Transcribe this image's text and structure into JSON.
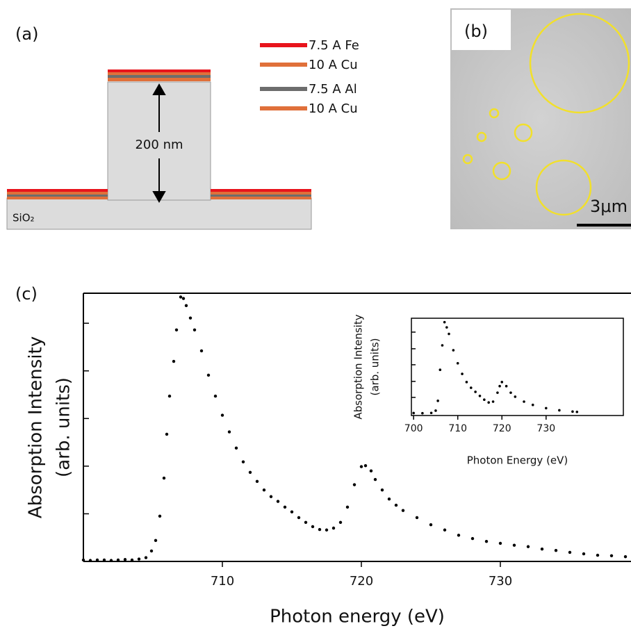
{
  "panel_a": {
    "label": "(a)",
    "layers": [
      "7.5 A Fe",
      "10 A Cu",
      "7.5 A Al",
      "10 A Cu"
    ],
    "height": "200 nm",
    "substrate": "SiO₂"
  },
  "panel_b": {
    "label": "(b)",
    "scale_bar": "3μm"
  },
  "panel_c": {
    "label": "(c)"
  },
  "chart_data": [
    {
      "type": "scatter",
      "xlabel": "Photon energy (eV)",
      "ylabel": [
        "Absorption Intensity",
        "(arb. units)"
      ],
      "color": "#000000",
      "xlim": [
        700,
        739.4
      ],
      "xticks": [
        710,
        720,
        730
      ],
      "ylim": [
        0,
        5.63
      ],
      "yticks": [
        1,
        2,
        3,
        4,
        5
      ],
      "x": [
        700,
        700.5,
        701,
        701.5,
        702,
        702.5,
        703,
        703.5,
        704,
        704.5,
        704.9,
        705.2,
        705.5,
        705.8,
        706,
        706.2,
        706.5,
        706.7,
        707,
        707.2,
        707.4,
        707.7,
        708,
        708.5,
        709,
        709.5,
        710,
        710.5,
        711,
        711.5,
        712,
        712.5,
        713,
        713.5,
        714,
        714.5,
        715,
        715.5,
        716,
        716.5,
        717,
        717.5,
        718,
        718.5,
        719,
        719.5,
        720,
        720.3,
        720.7,
        721,
        721.5,
        722,
        722.5,
        723,
        724,
        725,
        726,
        727,
        728,
        729,
        730,
        731,
        732,
        733,
        734,
        735,
        736,
        737,
        738,
        739
      ],
      "values": [
        0.03,
        0.02,
        0.03,
        0.03,
        0.02,
        0.03,
        0.04,
        0.03,
        0.05,
        0.08,
        0.22,
        0.44,
        0.95,
        1.75,
        2.67,
        3.47,
        4.2,
        4.86,
        5.55,
        5.52,
        5.37,
        5.11,
        4.86,
        4.42,
        3.91,
        3.47,
        3.07,
        2.72,
        2.38,
        2.09,
        1.87,
        1.68,
        1.5,
        1.36,
        1.26,
        1.14,
        1.04,
        0.92,
        0.82,
        0.73,
        0.67,
        0.66,
        0.7,
        0.82,
        1.14,
        1.61,
        1.99,
        2.01,
        1.9,
        1.72,
        1.5,
        1.31,
        1.18,
        1.07,
        0.92,
        0.77,
        0.66,
        0.55,
        0.48,
        0.42,
        0.38,
        0.34,
        0.31,
        0.26,
        0.23,
        0.19,
        0.16,
        0.13,
        0.12,
        0.1
      ]
    },
    {
      "type": "scatter",
      "xlabel": "Photon Energy (eV)",
      "ylabel": [
        "Absorption Intensity",
        "(arb. units)"
      ],
      "color": "#000000",
      "xlim": [
        699.5,
        747.5
      ],
      "xticks": [
        700,
        710,
        720,
        730
      ],
      "ylim": [
        0,
        5.96
      ],
      "yticks": [
        1.11,
        2.09,
        3.11,
        4.09,
        5.11
      ],
      "x": [
        700,
        702,
        704,
        705,
        705.5,
        706,
        706.5,
        707,
        707.5,
        708,
        709,
        710,
        711,
        712,
        713,
        714,
        715,
        716,
        717,
        718,
        719,
        719.5,
        720,
        721,
        722,
        723,
        725,
        727,
        730,
        733,
        736,
        737
      ],
      "values": [
        0.15,
        0.14,
        0.16,
        0.3,
        0.9,
        2.8,
        4.3,
        5.72,
        5.4,
        5.0,
        4.0,
        3.2,
        2.55,
        2.05,
        1.7,
        1.45,
        1.2,
        0.97,
        0.8,
        0.85,
        1.4,
        1.8,
        2.05,
        1.8,
        1.4,
        1.15,
        0.85,
        0.65,
        0.45,
        0.32,
        0.24,
        0.22
      ]
    }
  ]
}
